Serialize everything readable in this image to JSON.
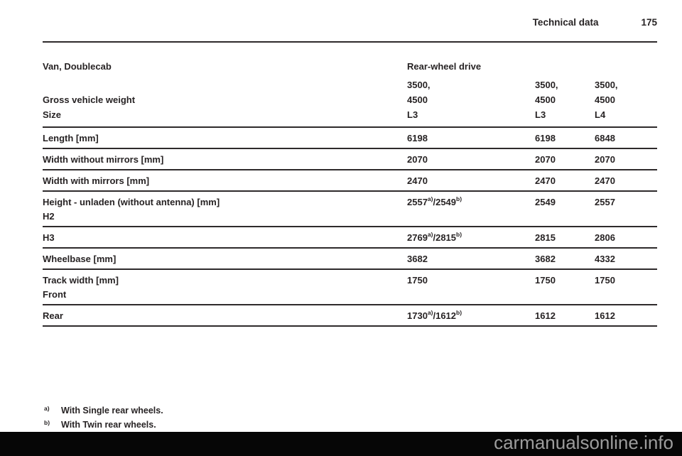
{
  "header": {
    "title": "Technical data",
    "page_number": "175"
  },
  "table": {
    "variant_label": "Van, Doublecab",
    "drive_header": "Rear-wheel drive",
    "gross_vehicle_weight": {
      "label": "Gross vehicle weight",
      "values": [
        {
          "line1": "3500,",
          "line2": "4500"
        },
        {
          "line1": "3500,",
          "line2": "4500"
        },
        {
          "line1": "3500,",
          "line2": "4500"
        }
      ]
    },
    "size_row": {
      "label": "Size",
      "c1": "L3",
      "c2": "L3",
      "c3": "L4"
    },
    "rows": [
      {
        "label": "Length [mm]",
        "c1": "6198",
        "c2": "6198",
        "c3": "6848"
      },
      {
        "label": "Width without mirrors [mm]",
        "c1": "2070",
        "c2": "2070",
        "c3": "2070"
      },
      {
        "label": "Width with mirrors [mm]",
        "c1": "2470",
        "c2": "2470",
        "c3": "2470"
      },
      {
        "label": "Height - unladen (without antenna) [mm]",
        "sublabel": "H2",
        "c1": {
          "main": "2557",
          "sup1": "a)",
          "rest": "/2549",
          "sup2": "b)"
        },
        "c2": "2549",
        "c3": "2557"
      },
      {
        "label": "H3",
        "c1": {
          "main": "2769",
          "sup1": "a)",
          "rest": "/2815",
          "sup2": "b)"
        },
        "c2": "2815",
        "c3": "2806"
      },
      {
        "label": "Wheelbase [mm]",
        "c1": "3682",
        "c2": "3682",
        "c3": "4332"
      },
      {
        "label": "Track width [mm]",
        "sublabel": "Front",
        "c1": "1750",
        "c2": "1750",
        "c3": "1750"
      },
      {
        "label": "Rear",
        "c1": {
          "main": "1730",
          "sup1": "a)",
          "rest": "/1612",
          "sup2": "b)"
        },
        "c2": "1612",
        "c3": "1612"
      }
    ]
  },
  "footnotes": [
    {
      "marker": "a)",
      "text": "With Single rear wheels."
    },
    {
      "marker": "b)",
      "text": "With Twin rear wheels."
    }
  ],
  "watermark": "carmanualsonline.info"
}
